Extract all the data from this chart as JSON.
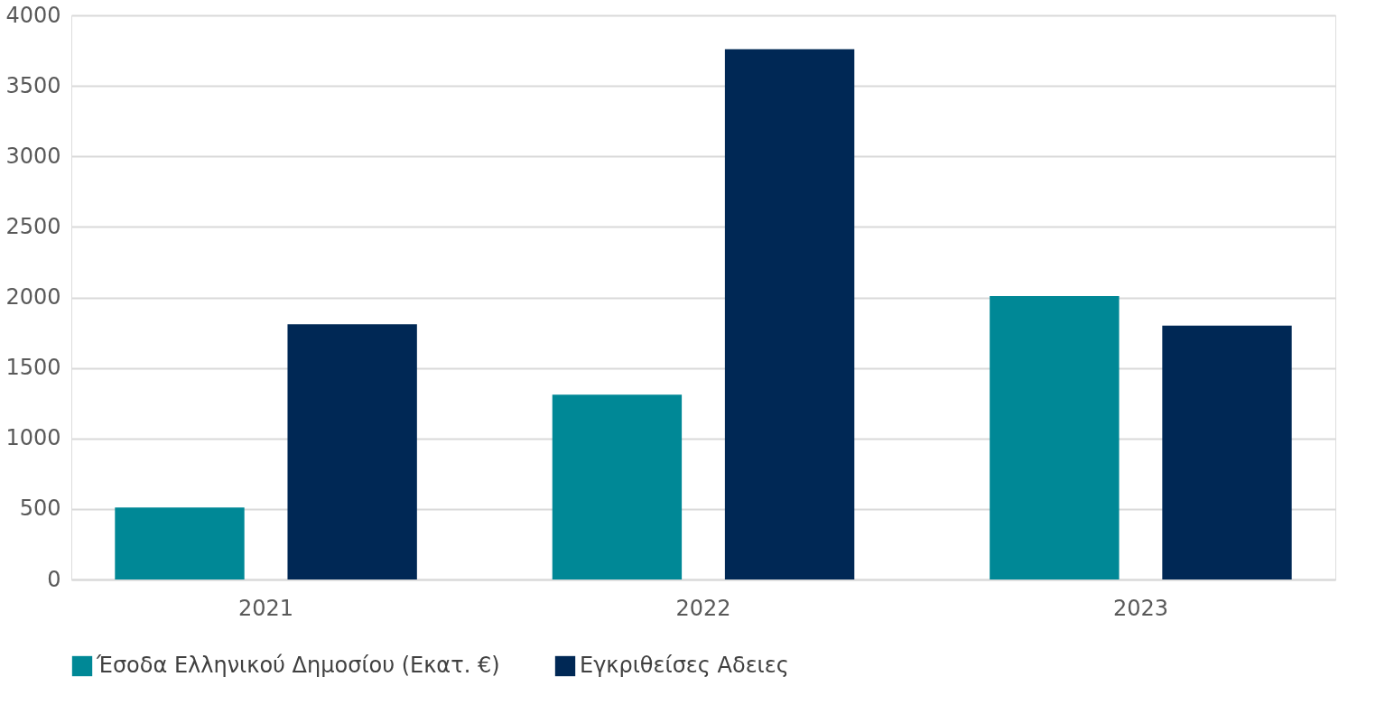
{
  "chart_data": {
    "type": "bar",
    "categories": [
      "2021",
      "2022",
      "2023"
    ],
    "series": [
      {
        "name": "Έσοδα Ελληνικού Δημοσίου (Εκατ. €)",
        "color": "#008896",
        "values": [
          510,
          1310,
          2010
        ]
      },
      {
        "name": "Εγκριθείσες Αδειες",
        "color": "#002855",
        "values": [
          1810,
          3760,
          1800
        ]
      }
    ],
    "ylim": [
      0,
      4000
    ],
    "yticks": [
      0,
      500,
      1000,
      1500,
      2000,
      2500,
      3000,
      3500,
      4000
    ],
    "grid": "y",
    "legend": "bottom"
  }
}
